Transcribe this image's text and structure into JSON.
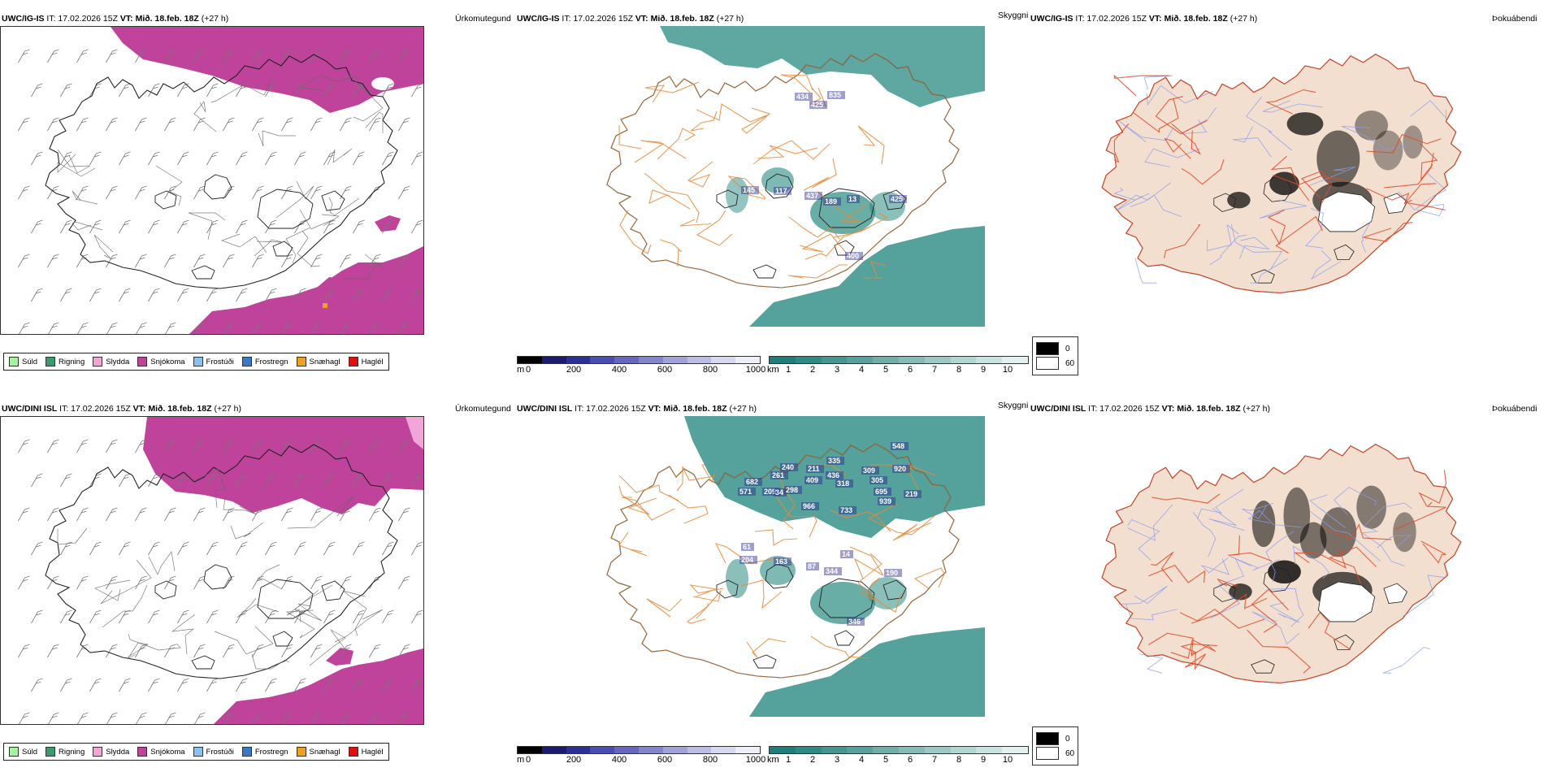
{
  "rows": [
    {
      "model": "UWC/IG-IS",
      "it_label": "IT: 17.02.2026 15Z",
      "vt_label": "VT: Mið. 18.feb. 18Z",
      "lead": "(+27 h)",
      "precip_title": "Úrkomutegund",
      "vis_title": "Skyggni",
      "fog_title": "Þokuábendi",
      "vis_values": [
        "434",
        "425",
        "835",
        "145",
        "117",
        "437",
        "189",
        "13",
        "425",
        "400"
      ]
    },
    {
      "model": "UWC/DINI ISL",
      "it_label": "IT: 17.02.2026 15Z",
      "vt_label": "VT: Mið. 18.feb. 18Z",
      "lead": "(+27 h)",
      "precip_title": "Úrkomutegund",
      "vis_title": "Skyggni",
      "fog_title": "Þokuábendi",
      "vis_values": [
        "548",
        "682",
        "571",
        "240",
        "261",
        "209",
        "34",
        "298",
        "211",
        "409",
        "335",
        "436",
        "318",
        "309",
        "920",
        "305",
        "695",
        "939",
        "219",
        "966",
        "733",
        "61",
        "204",
        "163",
        "87",
        "344",
        "14",
        "190",
        "346"
      ]
    }
  ],
  "precip_legend": [
    {
      "label": "Súld",
      "color": "#a6f29e"
    },
    {
      "label": "Rigning",
      "color": "#3d9a6a"
    },
    {
      "label": "Slydda",
      "color": "#f2a6d8"
    },
    {
      "label": "Snjókoma",
      "color": "#c0439b"
    },
    {
      "label": "Frostúði",
      "color": "#8cc0f0"
    },
    {
      "label": "Frostregn",
      "color": "#3a78c8"
    },
    {
      "label": "Snæhagl",
      "color": "#f0a020"
    },
    {
      "label": "Haglél",
      "color": "#e01010"
    }
  ],
  "ceiling_scale": {
    "unit": "m",
    "ticks": [
      "0",
      "200",
      "400",
      "600",
      "800",
      "1000"
    ],
    "colors": [
      "#000000",
      "#1a1a70",
      "#2c2f95",
      "#4a4eb0",
      "#6668c0",
      "#8486cc",
      "#a0a2d8",
      "#bcbde3",
      "#d8d8ef",
      "#eeeef8"
    ]
  },
  "vis_scale": {
    "unit": "km",
    "ticks": [
      "1",
      "2",
      "3",
      "4",
      "5",
      "6",
      "7",
      "8",
      "9",
      "10"
    ],
    "colors": [
      "#1f7f78",
      "#2f8a84",
      "#44968f",
      "#59a29b",
      "#6fafa8",
      "#86bcb6",
      "#9dc9c4",
      "#b4d6d2",
      "#cbe3e0",
      "#e2f0ee"
    ]
  },
  "fog_legend": [
    {
      "label": "0",
      "color": "#000000"
    },
    {
      "label": "60",
      "color": "#ffffff"
    }
  ],
  "colors": {
    "snow": "#c0439b",
    "sleet": "#f2a6d8",
    "vis": "#2a8a82",
    "land": "#f3dfcf",
    "road": "#e8893a",
    "red_road": "#e24b2a",
    "river": "#8a9ef0"
  }
}
